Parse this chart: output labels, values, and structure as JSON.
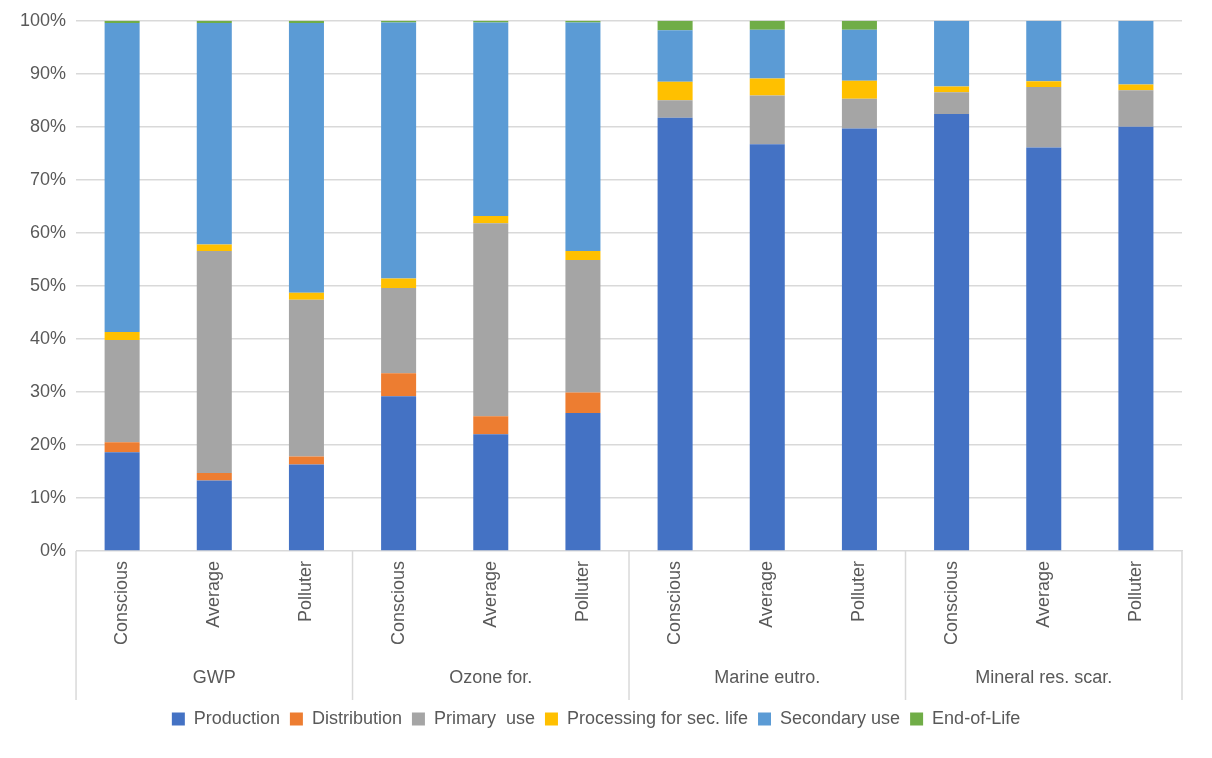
{
  "chart_data": {
    "type": "bar",
    "stacked": true,
    "categories": [
      "Conscious",
      "Average",
      "Polluter",
      "Conscious",
      "Average",
      "Polluter",
      "Conscious",
      "Average",
      "Polluter",
      "Conscious",
      "Average",
      "Polluter"
    ],
    "annotations": [
      "GWP",
      "Ozone for.",
      "Marine eutro.",
      "Mineral res. scar."
    ],
    "series": [
      {
        "name": "Production",
        "color": "#4472c4",
        "values": [
          18.6,
          13.3,
          16.3,
          29.2,
          22.0,
          26.0,
          81.7,
          76.7,
          79.7,
          82.4,
          76.1,
          80.0
        ]
      },
      {
        "name": "Distribution",
        "color": "#ed7d31",
        "values": [
          1.9,
          1.4,
          1.5,
          4.3,
          3.4,
          3.9,
          0,
          0,
          0,
          0,
          0,
          0
        ]
      },
      {
        "name": "Primary  use",
        "color": "#a5a5a5",
        "values": [
          19.3,
          41.9,
          29.6,
          16.1,
          36.4,
          25.0,
          3.3,
          9.2,
          5.6,
          4.1,
          11.4,
          6.9
        ]
      },
      {
        "name": "Processing for sec. life",
        "color": "#ffc000",
        "values": [
          1.5,
          1.2,
          1.3,
          1.8,
          1.4,
          1.7,
          3.5,
          3.2,
          3.4,
          1.1,
          1.1,
          1.1
        ]
      },
      {
        "name": "Secondary use",
        "color": "#5b9bd5",
        "values": [
          58.3,
          41.8,
          50.9,
          48.3,
          36.5,
          43.1,
          9.7,
          9.2,
          9.6,
          12.4,
          11.4,
          12.0
        ]
      },
      {
        "name": "End-of-Life",
        "color": "#70ad47",
        "values": [
          0.4,
          0.4,
          0.4,
          0.3,
          0.3,
          0.3,
          1.8,
          1.7,
          1.7,
          0,
          0,
          0
        ]
      }
    ],
    "ylim": [
      0,
      100
    ],
    "yticks": [
      {
        "value": 0,
        "label": "0%"
      },
      {
        "value": 10,
        "label": "10%"
      },
      {
        "value": 20,
        "label": "20%"
      },
      {
        "value": 30,
        "label": "30%"
      },
      {
        "value": 40,
        "label": "40%"
      },
      {
        "value": 50,
        "label": "50%"
      },
      {
        "value": 60,
        "label": "60%"
      },
      {
        "value": 70,
        "label": "70%"
      },
      {
        "value": 80,
        "label": "80%"
      },
      {
        "value": 90,
        "label": "90%"
      },
      {
        "value": 100,
        "label": "100%"
      }
    ],
    "grid": "y",
    "legend": "bottom"
  }
}
